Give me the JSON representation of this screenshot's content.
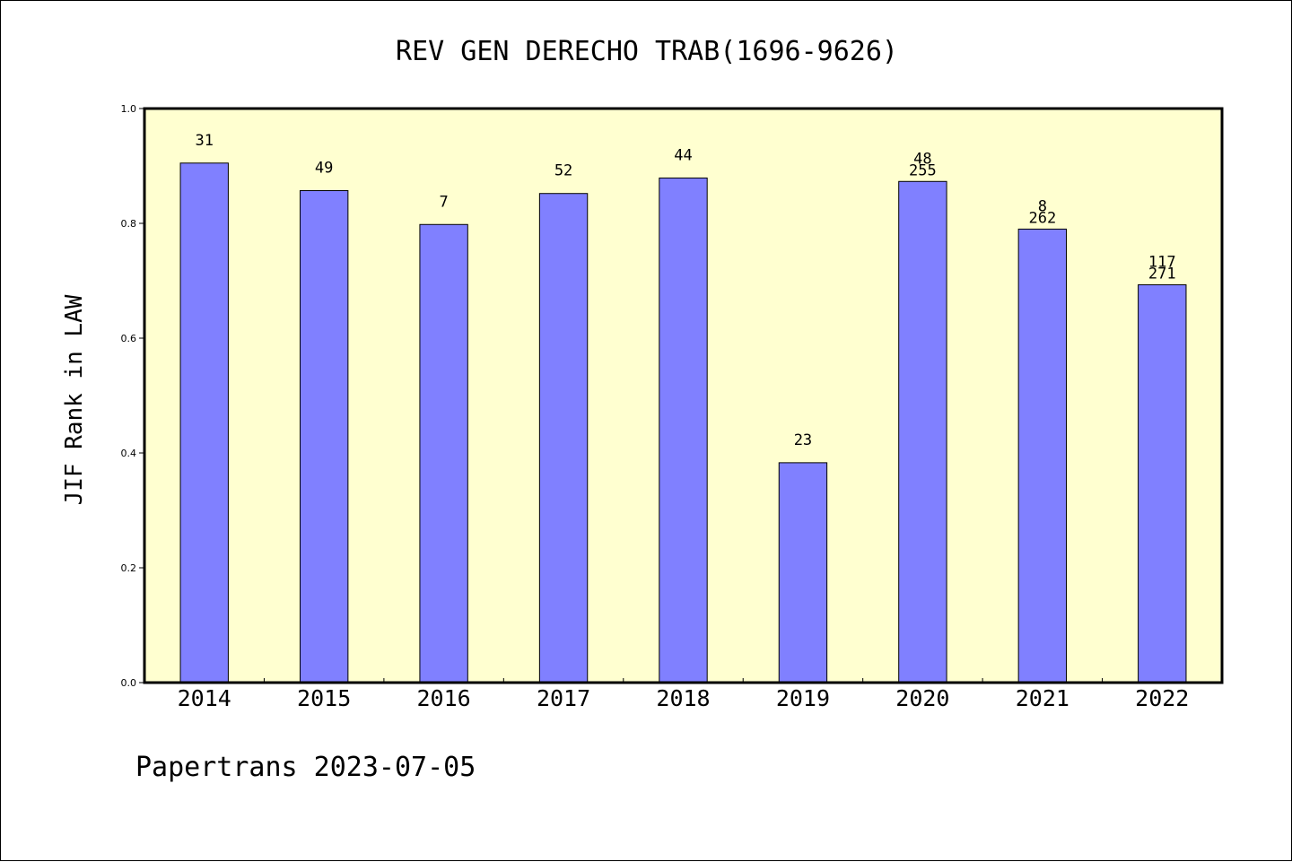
{
  "chart_data": {
    "type": "bar",
    "title": "REV GEN DERECHO TRAB(1696-9626)",
    "ylabel": "JIF Rank in LAW",
    "xlabel": "",
    "ylim": [
      0.0,
      1.0
    ],
    "yticks": [
      "0.0",
      "0.2",
      "0.4",
      "0.6",
      "0.8",
      "1.0"
    ],
    "categories": [
      "2014",
      "2015",
      "2016",
      "2017",
      "2018",
      "2019",
      "2020",
      "2021",
      "2022"
    ],
    "values": [
      0.905,
      0.857,
      0.798,
      0.852,
      0.879,
      0.383,
      0.873,
      0.79,
      0.693
    ],
    "bar_labels": [
      [
        "31"
      ],
      [
        "49"
      ],
      [
        "7"
      ],
      [
        "52"
      ],
      [
        "44"
      ],
      [
        "23"
      ],
      [
        "48",
        "255"
      ],
      [
        "8",
        "262"
      ],
      [
        "117",
        "271"
      ]
    ],
    "grid": false,
    "colors": {
      "plot_bg": "#ffffd0",
      "bar": "#8080ff",
      "edge": "#000000"
    }
  },
  "footer": "Papertrans 2023-07-05"
}
